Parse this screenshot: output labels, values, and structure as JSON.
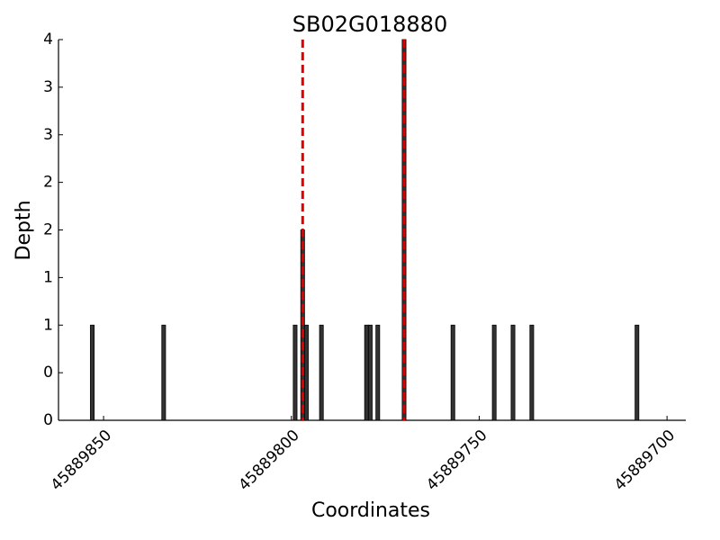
{
  "chart_data": {
    "type": "bar",
    "title": "SB02G018880",
    "x_label": "Coordinates",
    "y_label": "Depth",
    "x": [
      45889853,
      45889834,
      45889799,
      45889797,
      45889796,
      45889792,
      45889780,
      45889779,
      45889777,
      45889770,
      45889757,
      45889746,
      45889741,
      45889736,
      45889708
    ],
    "values": [
      1,
      1,
      1,
      2,
      1,
      1,
      1,
      1,
      1,
      4,
      1,
      1,
      1,
      1,
      1
    ],
    "color": "#333333",
    "vlines": [
      45889797,
      45889770
    ],
    "vline_color": "#e00000",
    "xlim": [
      45889862,
      45889695
    ],
    "xticks": [
      45889850,
      45889800,
      45889750,
      45889700
    ],
    "ylim": [
      0,
      4
    ],
    "yticks": [
      0,
      {
        "value": 0.5,
        "label": "0"
      },
      1,
      {
        "value": 1.5,
        "label": "1"
      },
      2,
      {
        "value": 2.5,
        "label": "2"
      },
      3,
      {
        "value": 3.5,
        "label": "3"
      },
      4
    ],
    "grid": false
  }
}
